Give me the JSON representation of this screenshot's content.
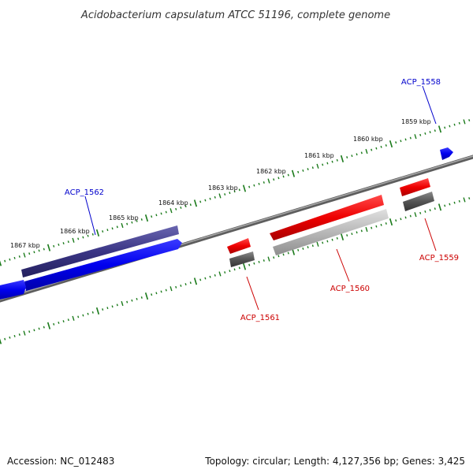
{
  "title": "Acidobacterium capsulatum ATCC 51196, complete genome",
  "footer": {
    "accession_label": "Accession:",
    "accession": "NC_012483",
    "topology_label": "Topology:",
    "topology": "circular",
    "length_label": "Length:",
    "length": "4,127,356 bp",
    "genes_label": "Genes:",
    "genes": "3,425"
  },
  "colors": {
    "forward_gene": "#0000ee",
    "reverse_gene": "#ee0000",
    "forward_label": "#0000cc",
    "reverse_label": "#cc0000",
    "forward_band": "#3a3585",
    "reverse_band_dark": "#555555",
    "reverse_band_light": "#b8b8b8",
    "backbone": "#7a7a7a",
    "tick": "#1a7a1a"
  },
  "kbp_labels": [
    "1859 kbp",
    "1860 kbp",
    "1861 kbp",
    "1862 kbp",
    "1863 kbp",
    "1864 kbp",
    "1865 kbp",
    "1866 kbp",
    "1867 kbp"
  ],
  "genes": [
    {
      "id": "ACP_1558",
      "strand": "forward"
    },
    {
      "id": "ACP_1559",
      "strand": "reverse"
    },
    {
      "id": "ACP_1560",
      "strand": "reverse"
    },
    {
      "id": "ACP_1561",
      "strand": "reverse"
    },
    {
      "id": "ACP_1562",
      "strand": "forward"
    }
  ]
}
